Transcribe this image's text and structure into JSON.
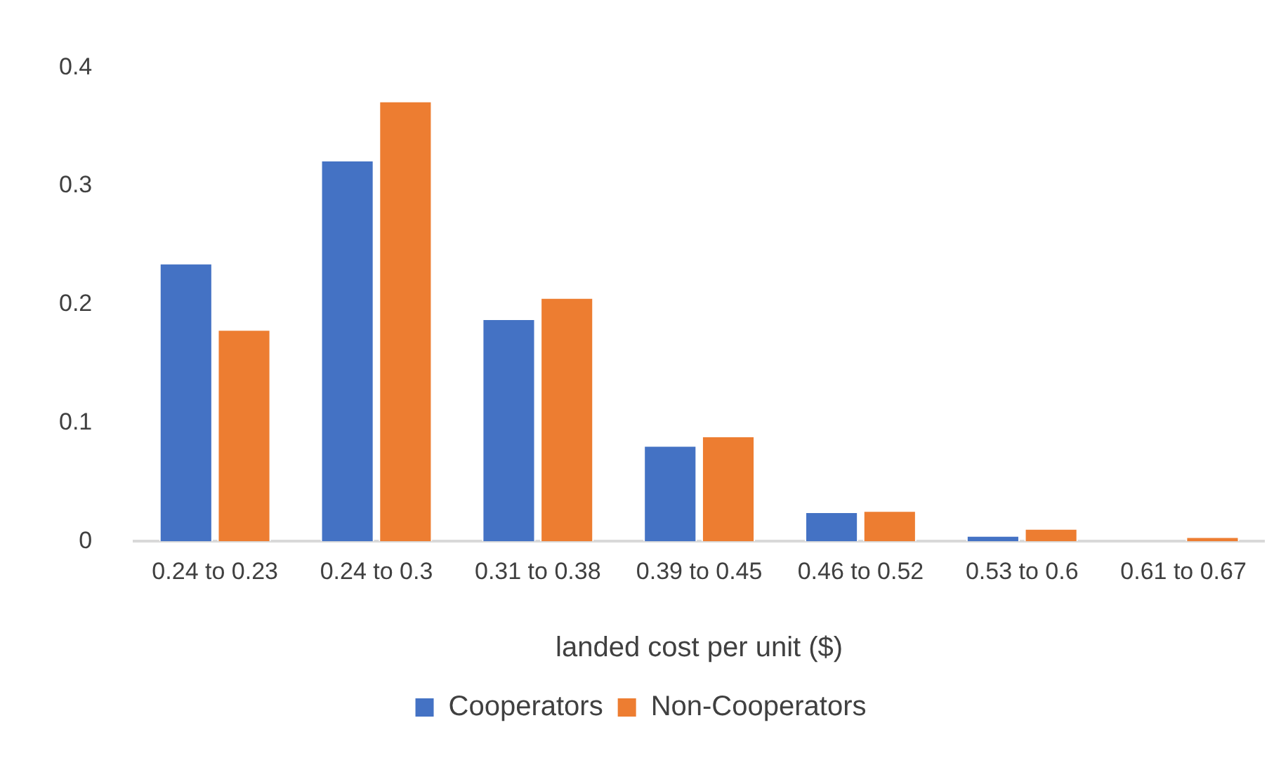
{
  "chart_data": {
    "type": "bar",
    "xlabel": "landed cost per unit ($)",
    "categories": [
      "0.24 to 0.23",
      "0.24 to 0.3",
      "0.31 to 0.38",
      "0.39 to 0.45",
      "0.46 to 0.52",
      "0.53 to 0.6",
      "0.61 to 0.67"
    ],
    "series": [
      {
        "name": "Cooperators",
        "color": "#4472c4",
        "values": [
          0.235,
          0.322,
          0.188,
          0.081,
          0.025,
          0.005,
          0
        ]
      },
      {
        "name": "Non-Cooperators",
        "color": "#ed7d31",
        "values": [
          0.179,
          0.372,
          0.206,
          0.089,
          0.026,
          0.011,
          0.004
        ]
      }
    ],
    "ylim": [
      0,
      0.4
    ],
    "yticks": [
      0,
      0.1,
      0.2,
      0.3,
      0.4
    ],
    "grid": false,
    "legend": "bottom"
  }
}
